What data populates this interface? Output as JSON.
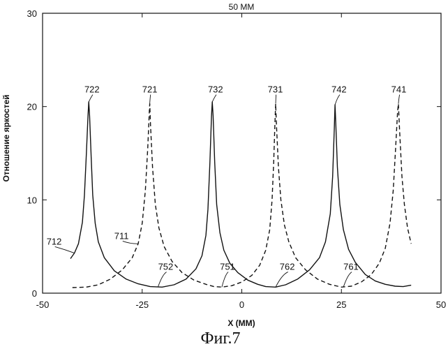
{
  "chart_data": {
    "type": "line",
    "title": "50 MM",
    "xlabel": "X (MM)",
    "ylabel": "Отношение яркостей",
    "xlim": [
      -50,
      50
    ],
    "ylim": [
      0,
      30
    ],
    "xticks": [
      -50,
      -25,
      0,
      25,
      50
    ],
    "xtick_labels": [
      "-50",
      "-25",
      "0",
      "25",
      "50"
    ],
    "yticks": [
      0,
      10,
      20,
      30
    ],
    "ytick_labels": [
      "0",
      "10",
      "20",
      "30"
    ],
    "grid": false,
    "caption": "Фиг.7",
    "series": [
      {
        "style": "solid",
        "color": "#111111",
        "points": [
          [
            -43.0,
            3.7
          ],
          [
            -42.0,
            4.3
          ],
          [
            -41.0,
            5.3
          ],
          [
            -40.0,
            7.6
          ],
          [
            -39.5,
            10.5
          ],
          [
            -39.0,
            15.0
          ],
          [
            -38.6,
            19.0
          ],
          [
            -38.4,
            20.5
          ],
          [
            -38.2,
            19.0
          ],
          [
            -37.8,
            14.5
          ],
          [
            -37.4,
            10.5
          ],
          [
            -36.8,
            7.5
          ],
          [
            -36.0,
            5.5
          ],
          [
            -34.5,
            3.8
          ],
          [
            -32.0,
            2.4
          ],
          [
            -29.0,
            1.5
          ],
          [
            -26.0,
            1.0
          ],
          [
            -23.0,
            0.7
          ],
          [
            -20.0,
            0.65
          ],
          [
            -17.0,
            0.9
          ],
          [
            -14.0,
            1.5
          ],
          [
            -11.5,
            2.6
          ],
          [
            -10.0,
            4.0
          ],
          [
            -9.0,
            6.2
          ],
          [
            -8.5,
            9.0
          ],
          [
            -8.0,
            14.0
          ],
          [
            -7.6,
            19.0
          ],
          [
            -7.4,
            20.5
          ],
          [
            -7.2,
            19.0
          ],
          [
            -6.8,
            14.0
          ],
          [
            -6.3,
            9.5
          ],
          [
            -5.5,
            6.5
          ],
          [
            -4.5,
            4.6
          ],
          [
            -3.0,
            3.2
          ],
          [
            -1.0,
            2.2
          ],
          [
            1.5,
            1.4
          ],
          [
            4.0,
            0.95
          ],
          [
            6.0,
            0.7
          ],
          [
            8.5,
            0.65
          ],
          [
            11.0,
            0.9
          ],
          [
            14.0,
            1.5
          ],
          [
            17.0,
            2.5
          ],
          [
            19.5,
            3.8
          ],
          [
            21.0,
            5.5
          ],
          [
            22.2,
            8.5
          ],
          [
            22.8,
            12.5
          ],
          [
            23.2,
            17.5
          ],
          [
            23.4,
            20.2
          ],
          [
            23.6,
            18.0
          ],
          [
            24.0,
            13.5
          ],
          [
            24.6,
            9.5
          ],
          [
            25.5,
            6.8
          ],
          [
            26.8,
            4.7
          ],
          [
            28.5,
            3.3
          ],
          [
            31.0,
            2.0
          ],
          [
            33.5,
            1.3
          ],
          [
            36.0,
            0.95
          ],
          [
            38.5,
            0.75
          ],
          [
            40.5,
            0.7
          ],
          [
            42.5,
            0.85
          ]
        ]
      },
      {
        "style": "dashed",
        "color": "#111111",
        "points": [
          [
            -42.5,
            0.6
          ],
          [
            -39.0,
            0.65
          ],
          [
            -36.0,
            0.9
          ],
          [
            -33.0,
            1.5
          ],
          [
            -30.0,
            2.5
          ],
          [
            -27.5,
            3.8
          ],
          [
            -26.0,
            5.3
          ],
          [
            -25.0,
            7.5
          ],
          [
            -24.2,
            11.0
          ],
          [
            -23.6,
            15.5
          ],
          [
            -23.2,
            19.5
          ],
          [
            -23.1,
            20.3
          ],
          [
            -22.9,
            18.0
          ],
          [
            -22.4,
            13.5
          ],
          [
            -21.7,
            9.5
          ],
          [
            -20.8,
            7.0
          ],
          [
            -19.5,
            5.0
          ],
          [
            -17.5,
            3.4
          ],
          [
            -15.0,
            2.2
          ],
          [
            -12.0,
            1.4
          ],
          [
            -9.0,
            0.95
          ],
          [
            -7.0,
            0.7
          ],
          [
            -5.0,
            0.65
          ],
          [
            -2.5,
            0.8
          ],
          [
            0.0,
            1.2
          ],
          [
            2.5,
            1.9
          ],
          [
            4.5,
            3.0
          ],
          [
            6.0,
            4.6
          ],
          [
            7.0,
            6.8
          ],
          [
            7.6,
            10.0
          ],
          [
            8.0,
            14.0
          ],
          [
            8.3,
            18.0
          ],
          [
            8.5,
            20.3
          ],
          [
            8.7,
            18.0
          ],
          [
            9.2,
            13.5
          ],
          [
            9.8,
            10.0
          ],
          [
            10.7,
            7.3
          ],
          [
            11.8,
            5.5
          ],
          [
            13.5,
            3.8
          ],
          [
            16.0,
            2.5
          ],
          [
            19.0,
            1.5
          ],
          [
            22.0,
            0.95
          ],
          [
            25.0,
            0.65
          ],
          [
            27.5,
            0.75
          ],
          [
            30.0,
            1.2
          ],
          [
            32.5,
            2.0
          ],
          [
            34.5,
            3.2
          ],
          [
            36.0,
            4.8
          ],
          [
            37.2,
            7.5
          ],
          [
            38.0,
            11.0
          ],
          [
            38.6,
            15.5
          ],
          [
            39.1,
            19.5
          ],
          [
            39.3,
            20.3
          ],
          [
            39.6,
            17.5
          ],
          [
            40.2,
            12.5
          ],
          [
            40.8,
            9.5
          ],
          [
            41.6,
            7.0
          ],
          [
            42.5,
            5.3
          ]
        ]
      }
    ],
    "annotations": [
      {
        "text": "722",
        "x": -39.5,
        "y": 21.5,
        "tx": -38.4,
        "ty": 20.5
      },
      {
        "text": "721",
        "x": -25.0,
        "y": 21.5,
        "tx": -23.1,
        "ty": 20.3
      },
      {
        "text": "732",
        "x": -8.5,
        "y": 21.5,
        "tx": -7.4,
        "ty": 20.5
      },
      {
        "text": "731",
        "x": 6.5,
        "y": 21.5,
        "tx": 8.5,
        "ty": 20.3
      },
      {
        "text": "742",
        "x": 22.5,
        "y": 21.5,
        "tx": 23.4,
        "ty": 20.2
      },
      {
        "text": "741",
        "x": 37.5,
        "y": 21.5,
        "tx": 39.3,
        "ty": 20.3
      },
      {
        "text": "712",
        "x": -49.0,
        "y": 5.2,
        "tx": -42.0,
        "ty": 4.3
      },
      {
        "text": "711",
        "x": -32.0,
        "y": 5.8,
        "tx": -26.0,
        "ty": 5.3
      },
      {
        "text": "752",
        "x": -21.0,
        "y": 2.5,
        "tx": -21.0,
        "ty": 0.7
      },
      {
        "text": "751",
        "x": -5.5,
        "y": 2.5,
        "tx": -5.0,
        "ty": 0.65
      },
      {
        "text": "762",
        "x": 9.5,
        "y": 2.5,
        "tx": 8.5,
        "ty": 0.65
      },
      {
        "text": "761",
        "x": 25.5,
        "y": 2.5,
        "tx": 25.5,
        "ty": 0.65
      }
    ]
  }
}
